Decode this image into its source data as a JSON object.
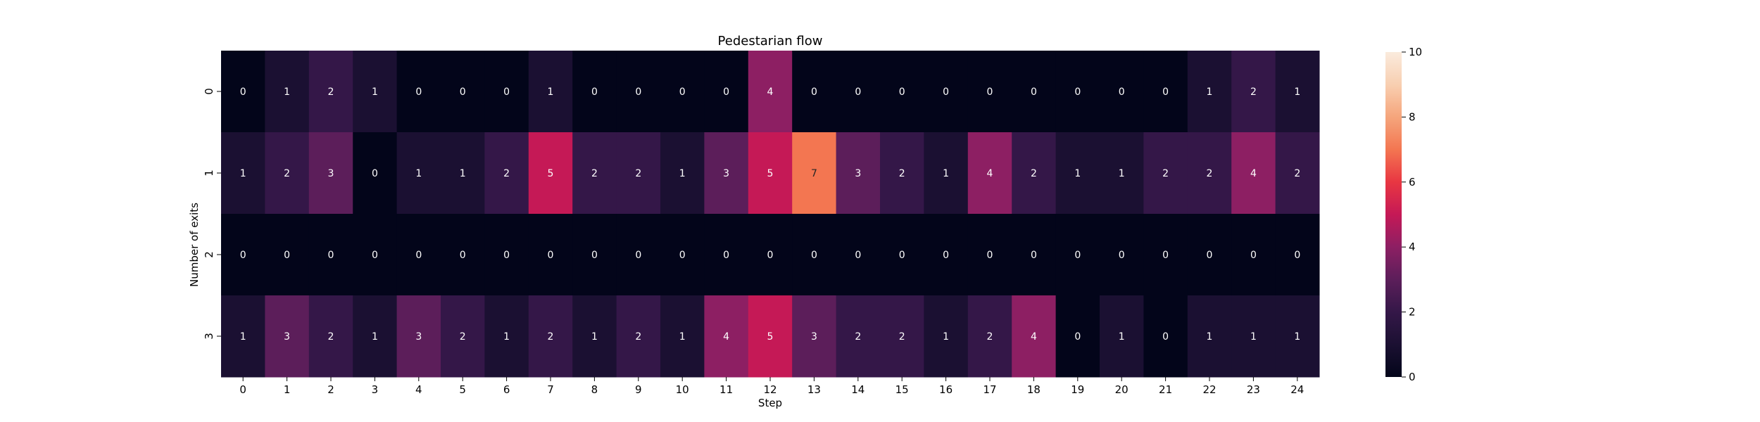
{
  "chart_data": {
    "type": "heatmap",
    "title": "Pedestarian flow",
    "xlabel": "Step",
    "ylabel": "Number of exits",
    "x_categories": [
      "0",
      "1",
      "2",
      "3",
      "4",
      "5",
      "6",
      "7",
      "8",
      "9",
      "10",
      "11",
      "12",
      "13",
      "14",
      "15",
      "16",
      "17",
      "18",
      "19",
      "20",
      "21",
      "22",
      "23",
      "24"
    ],
    "y_categories": [
      "0",
      "1",
      "2",
      "3"
    ],
    "values": [
      [
        0,
        1,
        2,
        1,
        0,
        0,
        0,
        1,
        0,
        0,
        0,
        0,
        4,
        0,
        0,
        0,
        0,
        0,
        0,
        0,
        0,
        0,
        1,
        2,
        1
      ],
      [
        1,
        2,
        3,
        0,
        1,
        1,
        2,
        5,
        2,
        2,
        1,
        3,
        5,
        7,
        3,
        2,
        1,
        4,
        2,
        1,
        1,
        2,
        2,
        4,
        2
      ],
      [
        0,
        0,
        0,
        0,
        0,
        0,
        0,
        0,
        0,
        0,
        0,
        0,
        0,
        0,
        0,
        0,
        0,
        0,
        0,
        0,
        0,
        0,
        0,
        0,
        0
      ],
      [
        1,
        3,
        2,
        1,
        3,
        2,
        1,
        2,
        1,
        2,
        1,
        4,
        5,
        3,
        2,
        2,
        1,
        2,
        4,
        0,
        1,
        0,
        1,
        1,
        1
      ]
    ],
    "annotated": true,
    "colormap": "rocket",
    "colorbar": {
      "vmin": 0,
      "vmax": 10,
      "ticks": [
        "0",
        "2",
        "4",
        "6",
        "8",
        "10"
      ]
    }
  }
}
